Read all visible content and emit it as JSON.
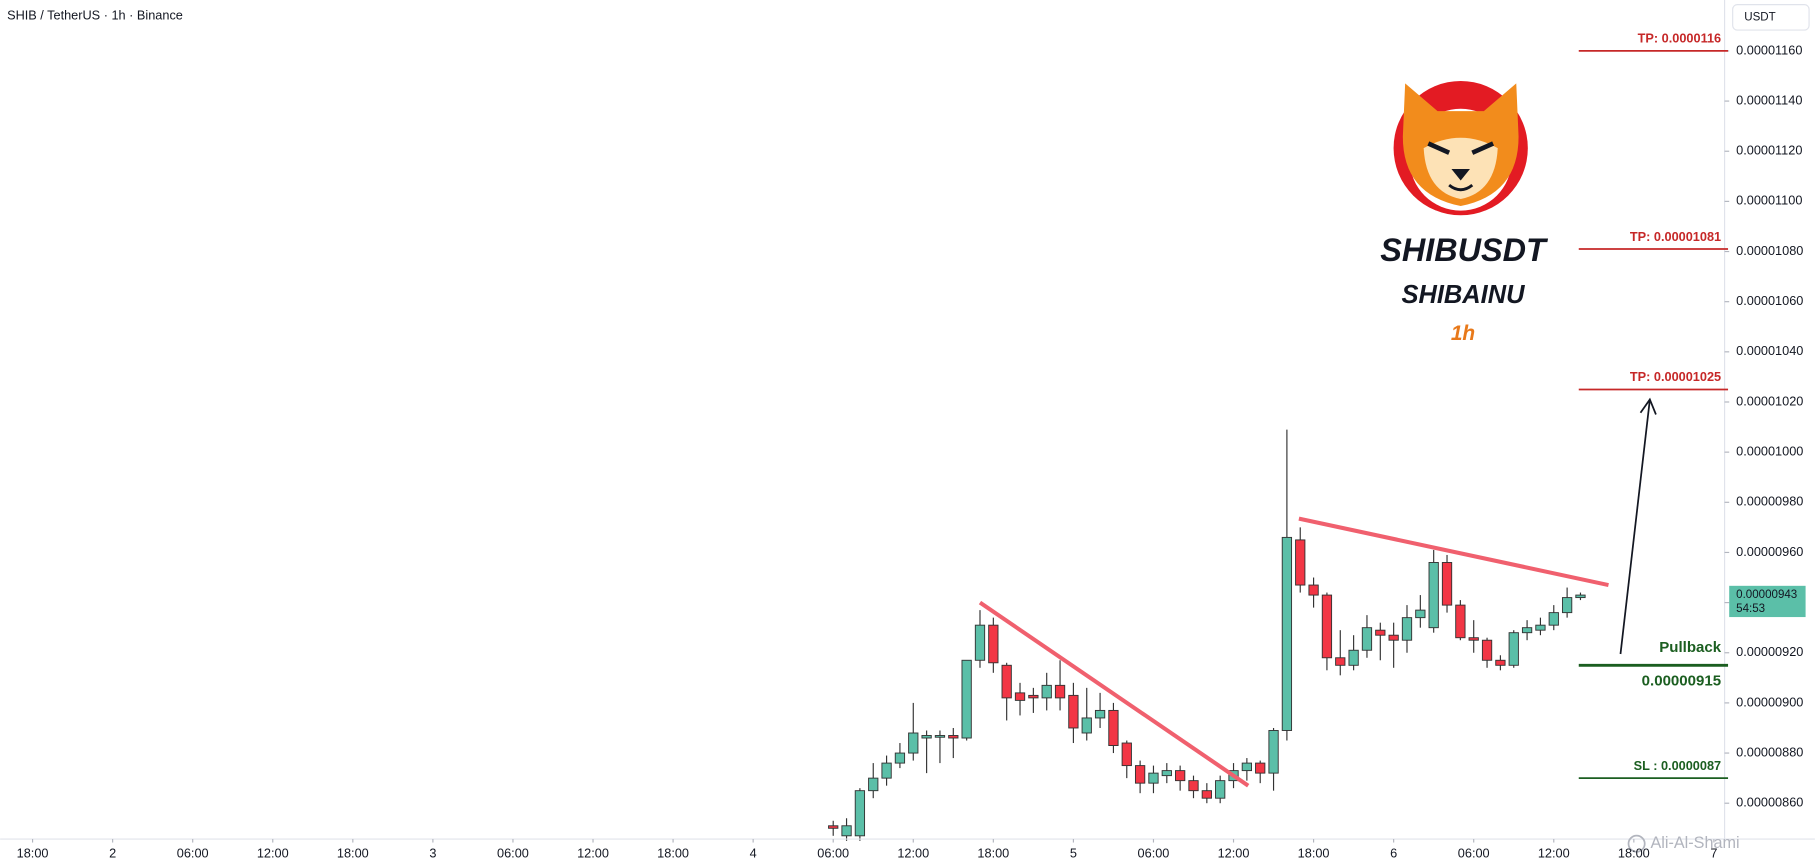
{
  "chart_data": {
    "type": "candlestick",
    "title": "SHIB / TetherUS · 1h · Binance",
    "currency": "USDT",
    "symbol": "SHIBUSDT",
    "name": "SHIBAINU",
    "interval": "1h",
    "watermark": "Ali-Al-Shami",
    "up_color": "#5bbfa8",
    "down_color": "#f23645",
    "xlim": [
      -2.43,
      126.8
    ],
    "ylim": [
      8.457e-06,
      1.18031e-05
    ],
    "xticks": [
      {
        "value": 0,
        "label": "18:00"
      },
      {
        "value": 6,
        "label": "2"
      },
      {
        "value": 12,
        "label": "06:00"
      },
      {
        "value": 18,
        "label": "12:00"
      },
      {
        "value": 24,
        "label": "18:00"
      },
      {
        "value": 30,
        "label": "3"
      },
      {
        "value": 36,
        "label": "06:00"
      },
      {
        "value": 42,
        "label": "12:00"
      },
      {
        "value": 48,
        "label": "18:00"
      },
      {
        "value": 54,
        "label": "4"
      },
      {
        "value": 60,
        "label": "06:00"
      },
      {
        "value": 66,
        "label": "12:00"
      },
      {
        "value": 72,
        "label": "18:00"
      },
      {
        "value": 78,
        "label": "5"
      },
      {
        "value": 84,
        "label": "06:00"
      },
      {
        "value": 90,
        "label": "12:00"
      },
      {
        "value": 96,
        "label": "18:00"
      },
      {
        "value": 102,
        "label": "6"
      },
      {
        "value": 108,
        "label": "06:00"
      },
      {
        "value": 114,
        "label": "12:00"
      },
      {
        "value": 120,
        "label": "18:00"
      },
      {
        "value": 126,
        "label": "7"
      }
    ],
    "yticks": [
      {
        "value": 8.6e-06,
        "label": "0.00000860"
      },
      {
        "value": 8.8e-06,
        "label": "0.00000880"
      },
      {
        "value": 9e-06,
        "label": "0.00000900"
      },
      {
        "value": 9.2e-06,
        "label": "0.00000920"
      },
      {
        "value": 9.4e-06,
        "label": "0.00000940"
      },
      {
        "value": 9.6e-06,
        "label": "0.00000960"
      },
      {
        "value": 9.8e-06,
        "label": "0.00000980"
      },
      {
        "value": 1e-05,
        "label": "0.00001000"
      },
      {
        "value": 1.02e-05,
        "label": "0.00001020"
      },
      {
        "value": 1.04e-05,
        "label": "0.00001040"
      },
      {
        "value": 1.06e-05,
        "label": "0.00001060"
      },
      {
        "value": 1.08e-05,
        "label": "0.00001080"
      },
      {
        "value": 1.1e-05,
        "label": "0.00001100"
      },
      {
        "value": 1.12e-05,
        "label": "0.00001120"
      },
      {
        "value": 1.14e-05,
        "label": "0.00001140"
      },
      {
        "value": 1.16e-05,
        "label": "0.00001160"
      }
    ],
    "x": [
      60,
      61,
      62,
      63,
      64,
      65,
      66,
      67,
      68,
      69,
      70,
      71,
      72,
      73,
      74,
      75,
      76,
      77,
      78,
      79,
      80,
      81,
      82,
      83,
      84,
      85,
      86,
      87,
      88,
      89,
      90,
      91,
      92,
      93,
      94,
      95,
      96,
      97,
      98,
      99,
      100,
      101,
      102,
      103,
      104,
      105,
      106,
      107,
      108,
      109,
      110,
      111,
      112,
      113,
      114,
      115,
      116
    ],
    "open": [
      8.51e-06,
      8.47e-06,
      8.47e-06,
      8.65e-06,
      8.7e-06,
      8.76e-06,
      8.8e-06,
      8.86e-06,
      8.87e-06,
      8.87e-06,
      8.86e-06,
      9.17e-06,
      9.31e-06,
      9.15e-06,
      9.04e-06,
      9.03e-06,
      9.02e-06,
      9.07e-06,
      9.03e-06,
      8.88e-06,
      8.94e-06,
      8.97e-06,
      8.84e-06,
      8.75e-06,
      8.68e-06,
      8.71e-06,
      8.73e-06,
      8.69e-06,
      8.65e-06,
      8.62e-06,
      8.69e-06,
      8.73e-06,
      8.76e-06,
      8.72e-06,
      8.89e-06,
      9.65e-06,
      9.47e-06,
      9.43e-06,
      9.18e-06,
      9.15e-06,
      9.21e-06,
      9.29e-06,
      9.27e-06,
      9.25e-06,
      9.34e-06,
      9.3e-06,
      9.56e-06,
      9.39e-06,
      9.26e-06,
      9.25e-06,
      9.17e-06,
      9.15e-06,
      9.28e-06,
      9.29e-06,
      9.31e-06,
      9.36e-06,
      9.42e-06
    ],
    "high": [
      8.53e-06,
      8.54e-06,
      8.66e-06,
      8.76e-06,
      8.79e-06,
      8.84e-06,
      9e-06,
      8.89e-06,
      8.89e-06,
      8.9e-06,
      9.17e-06,
      9.37e-06,
      9.34e-06,
      9.16e-06,
      9.08e-06,
      9.06e-06,
      9.12e-06,
      9.17e-06,
      9.08e-06,
      9.06e-06,
      9.04e-06,
      9e-06,
      8.85e-06,
      8.77e-06,
      8.75e-06,
      8.76e-06,
      8.75e-06,
      8.71e-06,
      8.68e-06,
      8.71e-06,
      8.76e-06,
      8.78e-06,
      8.77e-06,
      8.9e-06,
      1.009e-05,
      9.7e-06,
      9.5e-06,
      9.44e-06,
      9.29e-06,
      9.27e-06,
      9.35e-06,
      9.32e-06,
      9.32e-06,
      9.39e-06,
      9.43e-06,
      9.61e-06,
      9.59e-06,
      9.41e-06,
      9.33e-06,
      9.26e-06,
      9.19e-06,
      9.29e-06,
      9.33e-06,
      9.34e-06,
      9.39e-06,
      9.46e-06,
      9.44e-06
    ],
    "low": [
      8.47e-06,
      8.45e-06,
      8.45e-06,
      8.62e-06,
      8.67e-06,
      8.74e-06,
      8.77e-06,
      8.72e-06,
      8.76e-06,
      8.78e-06,
      8.85e-06,
      9.14e-06,
      9.12e-06,
      8.93e-06,
      8.95e-06,
      8.96e-06,
      8.97e-06,
      8.97e-06,
      8.84e-06,
      8.85e-06,
      8.9e-06,
      8.8e-06,
      8.7e-06,
      8.64e-06,
      8.64e-06,
      8.68e-06,
      8.65e-06,
      8.62e-06,
      8.6e-06,
      8.6e-06,
      8.66e-06,
      8.69e-06,
      8.68e-06,
      8.65e-06,
      8.85e-06,
      9.44e-06,
      9.38e-06,
      9.13e-06,
      9.11e-06,
      9.13e-06,
      9.18e-06,
      9.17e-06,
      9.14e-06,
      9.2e-06,
      9.3e-06,
      9.28e-06,
      9.36e-06,
      9.25e-06,
      9.2e-06,
      9.14e-06,
      9.13e-06,
      9.14e-06,
      9.25e-06,
      9.27e-06,
      9.29e-06,
      9.34e-06,
      9.41e-06
    ],
    "close": [
      8.5e-06,
      8.51e-06,
      8.65e-06,
      8.7e-06,
      8.76e-06,
      8.8e-06,
      8.88e-06,
      8.87e-06,
      8.87e-06,
      8.86e-06,
      9.17e-06,
      9.31e-06,
      9.16e-06,
      9.02e-06,
      9.01e-06,
      9.02e-06,
      9.07e-06,
      9.02e-06,
      8.9e-06,
      8.94e-06,
      8.97e-06,
      8.83e-06,
      8.75e-06,
      8.68e-06,
      8.72e-06,
      8.73e-06,
      8.69e-06,
      8.65e-06,
      8.62e-06,
      8.69e-06,
      8.73e-06,
      8.76e-06,
      8.72e-06,
      8.89e-06,
      9.66e-06,
      9.47e-06,
      9.43e-06,
      9.18e-06,
      9.15e-06,
      9.21e-06,
      9.3e-06,
      9.27e-06,
      9.25e-06,
      9.34e-06,
      9.37e-06,
      9.56e-06,
      9.39e-06,
      9.26e-06,
      9.25e-06,
      9.17e-06,
      9.15e-06,
      9.28e-06,
      9.3e-06,
      9.31e-06,
      9.36e-06,
      9.42e-06,
      9.43e-06
    ],
    "current_price": {
      "value": 9.43e-06,
      "value_label": "0.00000943",
      "countdown": "54:53",
      "color": "#5bbfa8"
    },
    "levels": [
      {
        "label": "TP: 0.0000116",
        "value": 1.16e-05,
        "color": "#c62828"
      },
      {
        "label": "TP: 0.00001081",
        "value": 1.081e-05,
        "color": "#c62828"
      },
      {
        "label": "TP: 0.00001025",
        "value": 1.025e-05,
        "color": "#c62828"
      },
      {
        "label": "Pullback",
        "value": 9.15e-06,
        "value_label": "0.00000915",
        "color": "#1b5e20"
      },
      {
        "label": "SL : 0.0000087",
        "value": 8.7e-06,
        "color": "#1b5e20"
      }
    ],
    "trendlines": [
      {
        "color": "#f0606e",
        "x": [
          71,
          91.1
        ],
        "y": [
          9.4e-06,
          8.67e-06
        ]
      },
      {
        "color": "#f0606e",
        "x": [
          94.9,
          118.1
        ],
        "y": [
          9.735e-06,
          9.47e-06
        ]
      }
    ],
    "arrow": {
      "color": "#131722",
      "x": [
        119,
        121.2
      ],
      "y": [
        9.195e-06,
        1.021e-05
      ]
    }
  }
}
